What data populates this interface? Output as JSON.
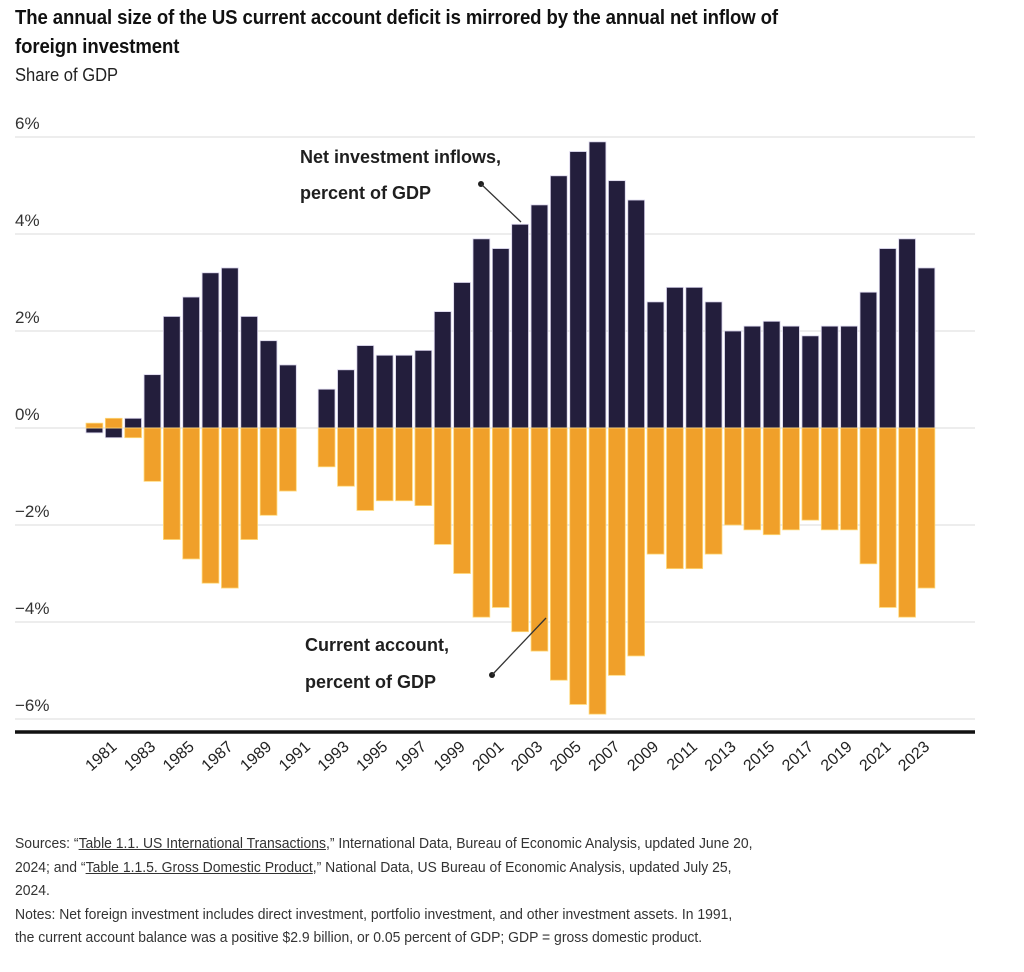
{
  "header": {
    "title_line1": "The annual size of the US current account deficit is mirrored by the annual net inflow of",
    "title_line2": "foreign investment",
    "subtitle": "Share of GDP"
  },
  "colors": {
    "net_investment": "#231e3c",
    "current_account": "#f0a02a",
    "gridline": "#e2e2e2",
    "baseline": "#111111"
  },
  "chart_data": {
    "type": "bar",
    "title": "The annual size of the US current account deficit is mirrored by the annual net inflow of foreign investment",
    "subtitle": "Share of GDP",
    "xlabel": "",
    "ylabel": "Share of GDP",
    "ylim": [
      -6,
      6
    ],
    "yticks": [
      6,
      4,
      2,
      0,
      -2,
      -4,
      -6
    ],
    "ytick_labels": [
      "6%",
      "4%",
      "2%",
      "0%",
      "−2%",
      "−4%",
      "−6%"
    ],
    "grid": true,
    "categories": [
      1980,
      1981,
      1982,
      1983,
      1984,
      1985,
      1986,
      1987,
      1988,
      1989,
      1990,
      1991,
      1992,
      1993,
      1994,
      1995,
      1996,
      1997,
      1998,
      1999,
      2000,
      2001,
      2002,
      2003,
      2004,
      2005,
      2006,
      2007,
      2008,
      2009,
      2010,
      2011,
      2012,
      2013,
      2014,
      2015,
      2016,
      2017,
      2018,
      2019,
      2020,
      2021,
      2022,
      2023
    ],
    "xtick_labels": [
      "1981",
      "1983",
      "1985",
      "1987",
      "1989",
      "1991",
      "1993",
      "1995",
      "1997",
      "1999",
      "2001",
      "2003",
      "2005",
      "2007",
      "2009",
      "2011",
      "2013",
      "2015",
      "2017",
      "2019",
      "2021",
      "2023"
    ],
    "series": [
      {
        "name": "Net investment inflows, percent of GDP",
        "values": [
          -0.1,
          -0.2,
          0.2,
          1.1,
          2.3,
          2.7,
          3.2,
          3.3,
          2.3,
          1.8,
          1.3,
          0.0,
          0.8,
          1.2,
          1.7,
          1.5,
          1.5,
          1.6,
          2.4,
          3.0,
          3.9,
          3.7,
          4.2,
          4.6,
          5.2,
          5.7,
          5.9,
          5.1,
          4.7,
          2.6,
          2.9,
          2.9,
          2.6,
          2.0,
          2.1,
          2.2,
          2.1,
          1.9,
          2.1,
          2.1,
          2.8,
          3.7,
          3.9,
          3.3
        ]
      },
      {
        "name": "Current account, percent of GDP",
        "values": [
          0.1,
          0.2,
          -0.2,
          -1.1,
          -2.3,
          -2.7,
          -3.2,
          -3.3,
          -2.3,
          -1.8,
          -1.3,
          0.05,
          -0.8,
          -1.2,
          -1.7,
          -1.5,
          -1.5,
          -1.6,
          -2.4,
          -3.0,
          -3.9,
          -3.7,
          -4.2,
          -4.6,
          -5.2,
          -5.7,
          -5.9,
          -5.1,
          -4.7,
          -2.6,
          -2.9,
          -2.9,
          -2.6,
          -2.0,
          -2.1,
          -2.2,
          -2.1,
          -1.9,
          -2.1,
          -2.1,
          -2.8,
          -3.7,
          -3.9,
          -3.3
        ]
      }
    ],
    "annotations": [
      {
        "series": "Net investment inflows",
        "line1": "Net investment inflows,",
        "line2": "percent of GDP",
        "points_to_year": 2002
      },
      {
        "series": "Current account",
        "line1": "Current account,",
        "line2": "percent of GDP",
        "points_to_year": 2003
      }
    ],
    "legend": "none (direct labels)"
  },
  "footer": {
    "sources_prefix": "Sources: “",
    "source1_link": "Table 1.1. US International Transactions",
    "source1_rest": ",” International Data, Bureau of Economic Analysis, updated June 20,",
    "line2_prefix": "2024; and “",
    "source2_link": "Table 1.1.5. Gross Domestic Product",
    "source2_rest": ",” National Data, US Bureau of Economic Analysis, updated July 25,",
    "line3": "2024.",
    "notes_line1": "Notes: Net foreign investment includes direct investment, portfolio investment, and other investment assets. In 1991,",
    "notes_line2": "the current account balance was a positive $2.9 billion, or 0.05 percent of GDP; GDP = gross domestic product."
  }
}
